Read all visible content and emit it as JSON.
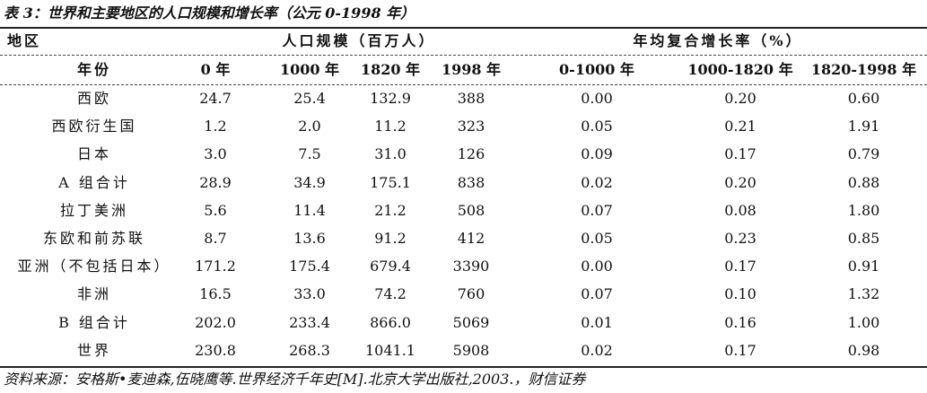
{
  "title": "表 3：世界和主要地区的人口规模和增长率（公元 0-1998 年）",
  "header": {
    "region_label": "地区",
    "group_population": "人口规模（百万人）",
    "group_growth": "年均复合增长率（%）",
    "year_label": "年份",
    "columns": [
      "0 年",
      "1000 年",
      "1820 年",
      "1998 年",
      "0-1000 年",
      "1000-1820 年",
      "1820-1998 年"
    ]
  },
  "rows": [
    {
      "region": "西欧",
      "values": [
        "24.7",
        "25.4",
        "132.9",
        "388",
        "0.00",
        "0.20",
        "0.60"
      ]
    },
    {
      "region": "西欧衍生国",
      "values": [
        "1.2",
        "2.0",
        "11.2",
        "323",
        "0.05",
        "0.21",
        "1.91"
      ]
    },
    {
      "region": "日本",
      "values": [
        "3.0",
        "7.5",
        "31.0",
        "126",
        "0.09",
        "0.17",
        "0.79"
      ]
    },
    {
      "region": "A 组合计",
      "values": [
        "28.9",
        "34.9",
        "175.1",
        "838",
        "0.02",
        "0.20",
        "0.88"
      ]
    },
    {
      "region": "拉丁美洲",
      "values": [
        "5.6",
        "11.4",
        "21.2",
        "508",
        "0.07",
        "0.08",
        "1.80"
      ]
    },
    {
      "region": "东欧和前苏联",
      "values": [
        "8.7",
        "13.6",
        "91.2",
        "412",
        "0.05",
        "0.23",
        "0.85"
      ]
    },
    {
      "region": "亚洲（不包括日本）",
      "values": [
        "171.2",
        "175.4",
        "679.4",
        "3390",
        "0.00",
        "0.17",
        "0.91"
      ]
    },
    {
      "region": "非洲",
      "values": [
        "16.5",
        "33.0",
        "74.2",
        "760",
        "0.07",
        "0.10",
        "1.32"
      ]
    },
    {
      "region": "B 组合计",
      "values": [
        "202.0",
        "233.4",
        "866.0",
        "5069",
        "0.01",
        "0.16",
        "1.00"
      ]
    },
    {
      "region": "世界",
      "values": [
        "230.8",
        "268.3",
        "1041.1",
        "5908",
        "0.02",
        "0.17",
        "0.98"
      ]
    }
  ],
  "source": "资料来源：安格斯•麦迪森,伍晓鹰等.世界经济千年史[M].北京大学出版社,2003.，财信证券"
}
